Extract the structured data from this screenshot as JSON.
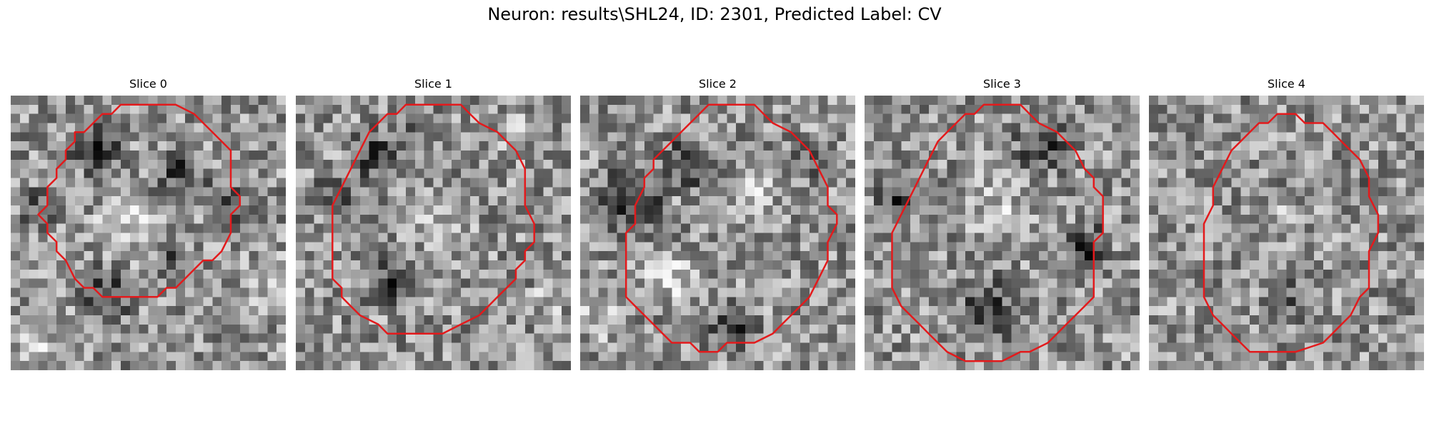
{
  "title": "Neuron: results\\SHL24, ID: 2301, Predicted Label: CV",
  "contour_color": "#e31a1c",
  "colormap": "grayscale",
  "panels": [
    {
      "label": "Slice 0",
      "contour": [
        [
          13,
          1
        ],
        [
          18,
          1
        ],
        [
          20,
          2
        ],
        [
          22,
          4
        ],
        [
          24,
          6
        ],
        [
          24,
          8
        ],
        [
          24,
          10
        ],
        [
          25,
          11
        ],
        [
          25,
          12
        ],
        [
          24,
          13
        ],
        [
          24,
          15
        ],
        [
          23,
          17
        ],
        [
          22,
          18
        ],
        [
          21,
          18
        ],
        [
          20,
          19
        ],
        [
          19,
          20
        ],
        [
          18,
          21
        ],
        [
          17,
          21
        ],
        [
          16,
          22
        ],
        [
          14,
          22
        ],
        [
          13,
          22
        ],
        [
          11,
          22
        ],
        [
          10,
          22
        ],
        [
          9,
          21
        ],
        [
          8,
          21
        ],
        [
          7,
          20
        ],
        [
          6,
          18
        ],
        [
          5,
          17
        ],
        [
          5,
          16
        ],
        [
          4,
          15
        ],
        [
          4,
          14
        ],
        [
          3,
          13
        ],
        [
          4,
          12
        ],
        [
          4,
          10
        ],
        [
          5,
          9
        ],
        [
          5,
          8
        ],
        [
          6,
          7
        ],
        [
          6,
          6
        ],
        [
          7,
          5
        ],
        [
          7,
          4
        ],
        [
          8,
          4
        ],
        [
          9,
          3
        ],
        [
          10,
          2
        ],
        [
          11,
          2
        ],
        [
          12,
          1
        ]
      ],
      "blobs": [
        {
          "x": 9,
          "y": 5,
          "r": 4,
          "v": -0.45
        },
        {
          "x": 18,
          "y": 8,
          "r": 4,
          "v": -0.35
        },
        {
          "x": 23,
          "y": 11,
          "r": 3,
          "v": -0.4
        },
        {
          "x": 3,
          "y": 12,
          "r": 3,
          "v": -0.35
        },
        {
          "x": 10,
          "y": 21,
          "r": 4,
          "v": -0.4
        },
        {
          "x": 17,
          "y": 18,
          "r": 3,
          "v": -0.35
        },
        {
          "x": 12,
          "y": 14,
          "r": 5,
          "v": 0.25
        },
        {
          "x": 27,
          "y": 20,
          "r": 4,
          "v": 0.2
        },
        {
          "x": 2,
          "y": 27,
          "r": 4,
          "v": 0.2
        }
      ],
      "seed": 11
    },
    {
      "label": "Slice 1",
      "contour": [
        [
          12,
          1
        ],
        [
          18,
          1
        ],
        [
          19,
          2
        ],
        [
          20,
          3
        ],
        [
          22,
          4
        ],
        [
          23,
          5
        ],
        [
          24,
          6
        ],
        [
          25,
          8
        ],
        [
          25,
          10
        ],
        [
          25,
          12
        ],
        [
          26,
          14
        ],
        [
          26,
          16
        ],
        [
          25,
          17
        ],
        [
          25,
          18
        ],
        [
          24,
          19
        ],
        [
          24,
          20
        ],
        [
          23,
          21
        ],
        [
          22,
          22
        ],
        [
          21,
          23
        ],
        [
          20,
          24
        ],
        [
          18,
          25
        ],
        [
          16,
          26
        ],
        [
          14,
          26
        ],
        [
          12,
          26
        ],
        [
          10,
          26
        ],
        [
          9,
          25
        ],
        [
          7,
          24
        ],
        [
          6,
          23
        ],
        [
          5,
          22
        ],
        [
          5,
          21
        ],
        [
          4,
          20
        ],
        [
          4,
          18
        ],
        [
          4,
          16
        ],
        [
          4,
          14
        ],
        [
          4,
          12
        ],
        [
          5,
          10
        ],
        [
          6,
          8
        ],
        [
          7,
          6
        ],
        [
          8,
          4
        ],
        [
          9,
          3
        ],
        [
          10,
          2
        ],
        [
          11,
          2
        ]
      ],
      "blobs": [
        {
          "x": 8,
          "y": 6,
          "r": 4,
          "v": -0.35
        },
        {
          "x": 14,
          "y": 3,
          "r": 3,
          "v": -0.3
        },
        {
          "x": 10,
          "y": 20,
          "r": 4,
          "v": -0.35
        },
        {
          "x": 4,
          "y": 10,
          "r": 3,
          "v": -0.3
        },
        {
          "x": 15,
          "y": 13,
          "r": 5,
          "v": 0.15
        },
        {
          "x": 23,
          "y": 4,
          "r": 3,
          "v": 0.2
        },
        {
          "x": 27,
          "y": 22,
          "r": 3,
          "v": 0.15
        }
      ],
      "seed": 23
    },
    {
      "label": "Slice 2",
      "contour": [
        [
          14,
          1
        ],
        [
          19,
          1
        ],
        [
          20,
          2
        ],
        [
          21,
          3
        ],
        [
          23,
          4
        ],
        [
          25,
          6
        ],
        [
          26,
          8
        ],
        [
          27,
          10
        ],
        [
          27,
          12
        ],
        [
          28,
          13
        ],
        [
          28,
          14
        ],
        [
          27,
          16
        ],
        [
          27,
          18
        ],
        [
          26,
          20
        ],
        [
          25,
          22
        ],
        [
          24,
          23
        ],
        [
          23,
          24
        ],
        [
          22,
          25
        ],
        [
          21,
          26
        ],
        [
          19,
          27
        ],
        [
          17,
          27
        ],
        [
          16,
          27
        ],
        [
          15,
          28
        ],
        [
          13,
          28
        ],
        [
          12,
          27
        ],
        [
          10,
          27
        ],
        [
          9,
          26
        ],
        [
          8,
          25
        ],
        [
          7,
          24
        ],
        [
          6,
          23
        ],
        [
          5,
          22
        ],
        [
          5,
          20
        ],
        [
          5,
          18
        ],
        [
          5,
          16
        ],
        [
          5,
          15
        ],
        [
          6,
          14
        ],
        [
          6,
          12
        ],
        [
          7,
          10
        ],
        [
          7,
          9
        ],
        [
          8,
          8
        ],
        [
          8,
          7
        ],
        [
          9,
          6
        ],
        [
          10,
          5
        ],
        [
          11,
          4
        ],
        [
          12,
          3
        ],
        [
          13,
          2
        ]
      ],
      "blobs": [
        {
          "x": 5,
          "y": 11,
          "r": 5,
          "v": -0.5
        },
        {
          "x": 11,
          "y": 7,
          "r": 4,
          "v": -0.4
        },
        {
          "x": 16,
          "y": 25,
          "r": 4,
          "v": -0.35
        },
        {
          "x": 25,
          "y": 6,
          "r": 3,
          "v": -0.25
        },
        {
          "x": 9,
          "y": 19,
          "r": 4,
          "v": 0.3
        },
        {
          "x": 19,
          "y": 10,
          "r": 3,
          "v": 0.25
        },
        {
          "x": 2,
          "y": 24,
          "r": 4,
          "v": 0.2
        }
      ],
      "seed": 37
    },
    {
      "label": "Slice 3",
      "contour": [
        [
          13,
          1
        ],
        [
          17,
          1
        ],
        [
          18,
          2
        ],
        [
          19,
          3
        ],
        [
          21,
          4
        ],
        [
          22,
          5
        ],
        [
          23,
          6
        ],
        [
          24,
          8
        ],
        [
          25,
          9
        ],
        [
          25,
          10
        ],
        [
          26,
          11
        ],
        [
          26,
          13
        ],
        [
          26,
          15
        ],
        [
          25,
          16
        ],
        [
          25,
          18
        ],
        [
          25,
          20
        ],
        [
          25,
          22
        ],
        [
          24,
          23
        ],
        [
          23,
          24
        ],
        [
          22,
          25
        ],
        [
          21,
          26
        ],
        [
          20,
          27
        ],
        [
          18,
          28
        ],
        [
          17,
          28
        ],
        [
          15,
          29
        ],
        [
          13,
          29
        ],
        [
          11,
          29
        ],
        [
          9,
          28
        ],
        [
          8,
          27
        ],
        [
          7,
          26
        ],
        [
          6,
          25
        ],
        [
          5,
          24
        ],
        [
          4,
          23
        ],
        [
          3,
          21
        ],
        [
          3,
          19
        ],
        [
          3,
          17
        ],
        [
          3,
          15
        ],
        [
          4,
          13
        ],
        [
          5,
          11
        ],
        [
          6,
          9
        ],
        [
          7,
          7
        ],
        [
          8,
          5
        ],
        [
          9,
          4
        ],
        [
          10,
          3
        ],
        [
          11,
          2
        ],
        [
          12,
          2
        ]
      ],
      "blobs": [
        {
          "x": 19,
          "y": 5,
          "r": 4,
          "v": -0.4
        },
        {
          "x": 24,
          "y": 16,
          "r": 3,
          "v": -0.5
        },
        {
          "x": 13,
          "y": 23,
          "r": 5,
          "v": -0.35
        },
        {
          "x": 3,
          "y": 11,
          "r": 3,
          "v": -0.4
        },
        {
          "x": 14,
          "y": 12,
          "r": 5,
          "v": 0.2
        },
        {
          "x": 28,
          "y": 26,
          "r": 3,
          "v": 0.2
        }
      ],
      "seed": 53
    },
    {
      "label": "Slice 4",
      "contour": [
        [
          14,
          2
        ],
        [
          16,
          2
        ],
        [
          17,
          3
        ],
        [
          19,
          3
        ],
        [
          20,
          4
        ],
        [
          21,
          5
        ],
        [
          22,
          6
        ],
        [
          23,
          7
        ],
        [
          24,
          9
        ],
        [
          24,
          11
        ],
        [
          25,
          13
        ],
        [
          25,
          15
        ],
        [
          24,
          17
        ],
        [
          24,
          19
        ],
        [
          24,
          21
        ],
        [
          23,
          22
        ],
        [
          22,
          24
        ],
        [
          21,
          25
        ],
        [
          20,
          26
        ],
        [
          19,
          27
        ],
        [
          16,
          28
        ],
        [
          13,
          28
        ],
        [
          11,
          28
        ],
        [
          10,
          27
        ],
        [
          9,
          26
        ],
        [
          8,
          25
        ],
        [
          7,
          24
        ],
        [
          6,
          22
        ],
        [
          6,
          20
        ],
        [
          6,
          18
        ],
        [
          6,
          16
        ],
        [
          6,
          14
        ],
        [
          7,
          12
        ],
        [
          7,
          10
        ],
        [
          8,
          8
        ],
        [
          9,
          6
        ],
        [
          10,
          5
        ],
        [
          11,
          4
        ],
        [
          12,
          3
        ],
        [
          13,
          3
        ]
      ],
      "blobs": [
        {
          "x": 15,
          "y": 22,
          "r": 4,
          "v": -0.2
        },
        {
          "x": 22,
          "y": 10,
          "r": 3,
          "v": -0.15
        },
        {
          "x": 5,
          "y": 20,
          "r": 3,
          "v": -0.15
        },
        {
          "x": 14,
          "y": 13,
          "r": 4,
          "v": 0.1
        }
      ],
      "seed": 71
    }
  ]
}
